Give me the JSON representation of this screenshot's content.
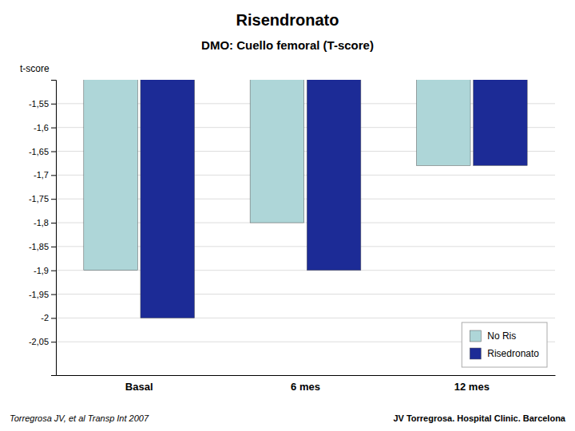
{
  "chart_data": {
    "type": "bar",
    "title": "Risendronato",
    "subtitle": "DMO: Cuello femoral (T-score)",
    "ylabel": "t-score",
    "categories": [
      "Basal",
      "6 mes",
      "12 mes"
    ],
    "series": [
      {
        "name": "No Ris",
        "color": "#aed6d8",
        "values": [
          -1.9,
          -1.8,
          -1.68
        ]
      },
      {
        "name": "Risedronato",
        "color": "#1c2b96",
        "values": [
          -2.0,
          -1.9,
          -1.68
        ]
      }
    ],
    "ylim": [
      -2.12,
      -1.5
    ],
    "yticks": [
      {
        "value": -1.55,
        "label": "-1,55"
      },
      {
        "value": -1.6,
        "label": "-1,6"
      },
      {
        "value": -1.65,
        "label": "-1,65"
      },
      {
        "value": -1.7,
        "label": "-1,7"
      },
      {
        "value": -1.75,
        "label": "-1,75"
      },
      {
        "value": -1.8,
        "label": "-1,8"
      },
      {
        "value": -1.85,
        "label": "-1,85"
      },
      {
        "value": -1.9,
        "label": "-1,9"
      },
      {
        "value": -1.95,
        "label": "-1,95"
      },
      -2,
      {
        "value": -2.05,
        "label": "-2,05"
      }
    ],
    "grid": true,
    "legend": "lower right",
    "annotations": [
      "Torregrosa JV, et al  Transp Int 2007",
      "JV Torregrosa. Hospital Clinic. Barcelona"
    ]
  }
}
